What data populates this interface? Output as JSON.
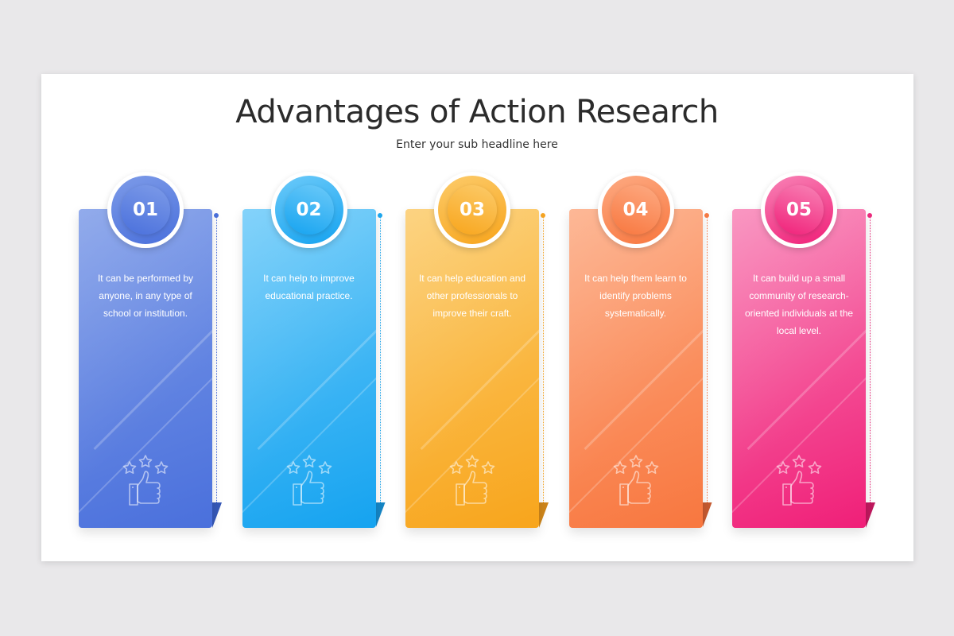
{
  "title": "Advantages of Action Research",
  "subtitle": "Enter your sub headline here",
  "cards": [
    {
      "number": "01",
      "text": "It can be performed by anyone, in any type of school or institution.",
      "color_top": "#7d9be8",
      "color_bottom": "#4a70dc",
      "accent": "#4a70dc",
      "fold": "#3658b8",
      "icon": "thumbs-up-stars-icon"
    },
    {
      "number": "02",
      "text": "It can help to improve educational practice.",
      "color_top": "#6ccaf9",
      "color_bottom": "#15a3f0",
      "accent": "#1ea8f0",
      "fold": "#1586c6",
      "icon": "thumbs-up-stars-icon"
    },
    {
      "number": "03",
      "text": "It can help education and other professionals to improve their craft.",
      "color_top": "#fccb6a",
      "color_bottom": "#f8a51c",
      "accent": "#f8a623",
      "fold": "#cf861a",
      "icon": "thumbs-up-stars-icon"
    },
    {
      "number": "04",
      "text": "It can help them learn to identify problems systematically.",
      "color_top": "#fdaa82",
      "color_bottom": "#f8773f",
      "accent": "#f87c46",
      "fold": "#c65a30",
      "icon": "thumbs-up-stars-icon"
    },
    {
      "number": "05",
      "text": "It can build up a small community of research-oriented individuals at the local level.",
      "color_top": "#f883b6",
      "color_bottom": "#f01f78",
      "accent": "#ee2b7e",
      "fold": "#c0185e",
      "icon": "thumbs-up-stars-icon"
    }
  ]
}
